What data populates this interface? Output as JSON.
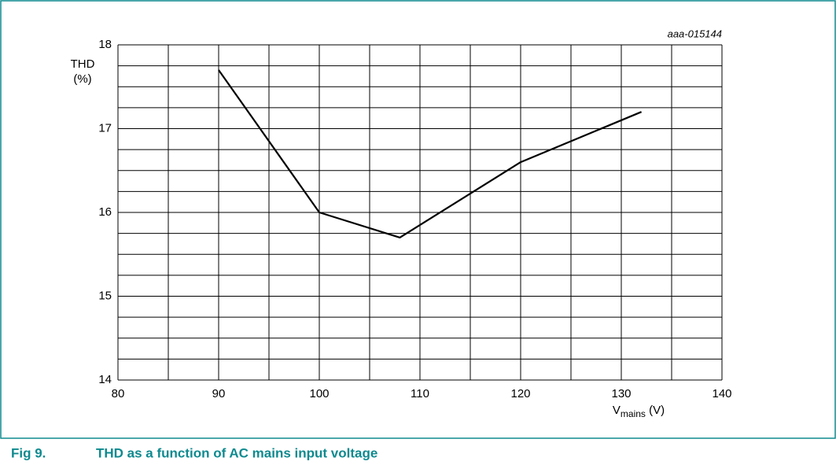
{
  "chart_data": {
    "type": "line",
    "figure_label": "Fig 9.",
    "caption": "THD as a function of AC mains input voltage",
    "code": "aaa-015144",
    "y_label": [
      "THD",
      "(%)"
    ],
    "x_label": {
      "main": "V",
      "sub": "mains",
      "unit": " (V)"
    },
    "x": [
      90,
      100,
      108,
      120,
      132
    ],
    "series": [
      {
        "name": "THD",
        "color": "#000000",
        "values": [
          17.7,
          16.0,
          15.7,
          16.6,
          17.2
        ]
      }
    ],
    "xlim": [
      80,
      140
    ],
    "xticks": [
      80,
      90,
      100,
      110,
      120,
      130,
      140
    ],
    "minor_xticks": [
      85,
      95,
      105,
      115,
      125,
      135
    ],
    "ylim": [
      14,
      18
    ],
    "yticks": [
      14,
      15,
      16,
      17,
      18
    ],
    "minor_yticks": [
      14.25,
      14.5,
      14.75,
      15.25,
      15.5,
      15.75,
      16.25,
      16.5,
      16.75,
      17.25,
      17.5,
      17.75
    ],
    "grid": true
  }
}
